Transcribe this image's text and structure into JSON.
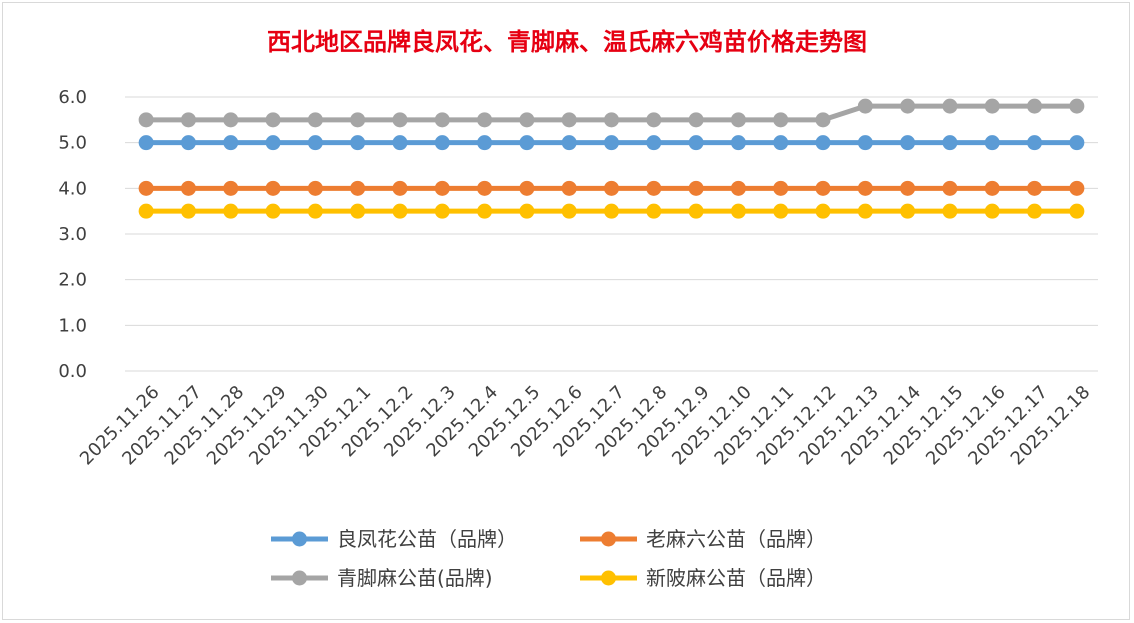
{
  "chart_data": {
    "type": "line",
    "title": "西北地区品牌良凤花、青脚麻、温氏麻六鸡苗价格走势图",
    "xlabel": "",
    "ylabel": "",
    "ylim": [
      0,
      6
    ],
    "yticks": [
      "0.0",
      "1.0",
      "2.0",
      "3.0",
      "4.0",
      "5.0",
      "6.0"
    ],
    "grid": true,
    "legend_position": "bottom",
    "categories": [
      "2025.11.26",
      "2025.11.27",
      "2025.11.28",
      "2025.11.29",
      "2025.11.30",
      "2025.12.1",
      "2025.12.2",
      "2025.12.3",
      "2025.12.4",
      "2025.12.5",
      "2025.12.6",
      "2025.12.7",
      "2025.12.8",
      "2025.12.9",
      "2025.12.10",
      "2025.12.11",
      "2025.12.12",
      "2025.12.13",
      "2025.12.14",
      "2025.12.15",
      "2025.12.16",
      "2025.12.17",
      "2025.12.18"
    ],
    "series": [
      {
        "name": "良凤花公苗（品牌）",
        "color": "#5b9bd5",
        "values": [
          5.0,
          5.0,
          5.0,
          5.0,
          5.0,
          5.0,
          5.0,
          5.0,
          5.0,
          5.0,
          5.0,
          5.0,
          5.0,
          5.0,
          5.0,
          5.0,
          5.0,
          5.0,
          5.0,
          5.0,
          5.0,
          5.0,
          5.0
        ]
      },
      {
        "name": "老麻六公苗（品牌）",
        "color": "#ed7d31",
        "values": [
          4.0,
          4.0,
          4.0,
          4.0,
          4.0,
          4.0,
          4.0,
          4.0,
          4.0,
          4.0,
          4.0,
          4.0,
          4.0,
          4.0,
          4.0,
          4.0,
          4.0,
          4.0,
          4.0,
          4.0,
          4.0,
          4.0,
          4.0
        ]
      },
      {
        "name": "青脚麻公苗(品牌)",
        "color": "#a5a5a5",
        "values": [
          5.5,
          5.5,
          5.5,
          5.5,
          5.5,
          5.5,
          5.5,
          5.5,
          5.5,
          5.5,
          5.5,
          5.5,
          5.5,
          5.5,
          5.5,
          5.5,
          5.5,
          5.8,
          5.8,
          5.8,
          5.8,
          5.8,
          5.8
        ]
      },
      {
        "name": "新陂麻公苗（品牌）",
        "color": "#ffc000",
        "values": [
          3.5,
          3.5,
          3.5,
          3.5,
          3.5,
          3.5,
          3.5,
          3.5,
          3.5,
          3.5,
          3.5,
          3.5,
          3.5,
          3.5,
          3.5,
          3.5,
          3.5,
          3.5,
          3.5,
          3.5,
          3.5,
          3.5,
          3.5
        ]
      }
    ]
  }
}
